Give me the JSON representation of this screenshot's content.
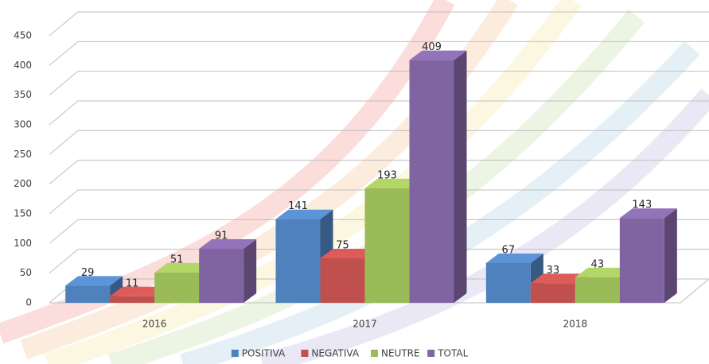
{
  "chart_data": {
    "type": "bar3d",
    "categories": [
      "2016",
      "2017",
      "2018"
    ],
    "series": [
      {
        "name": "POSITIVA",
        "color": "#4f81bd",
        "values": [
          29,
          141,
          67
        ]
      },
      {
        "name": "NEGATIVA",
        "color": "#c0504d",
        "values": [
          11,
          75,
          33
        ]
      },
      {
        "name": "NEUTRE",
        "color": "#9bbb59",
        "values": [
          51,
          193,
          43
        ]
      },
      {
        "name": "TOTAL",
        "color": "#8064a2",
        "values": [
          91,
          409,
          143
        ]
      }
    ],
    "ylim": [
      0,
      450
    ],
    "yticks": [
      0,
      50,
      100,
      150,
      200,
      250,
      300,
      350,
      400,
      450
    ],
    "grid": true,
    "legend": "bottom"
  }
}
